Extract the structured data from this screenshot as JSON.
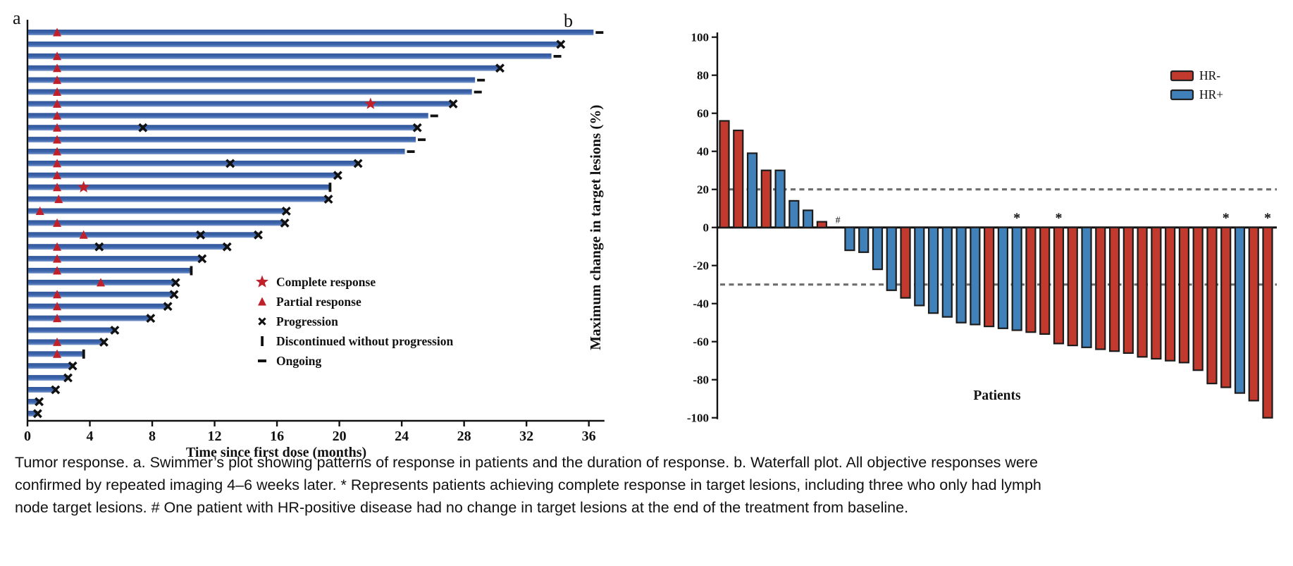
{
  "caption": {
    "line1": "Tumor response. a. Swimmer’s plot showing patterns of response in patients and the duration of response. b. Waterfall plot. All objective responses were",
    "line2": "confirmed by repeated imaging 4–6 weeks later. * Represents patients achieving complete response in target lesions, including three who only had lymph",
    "line3": "node target lesions. # One patient with HR-positive disease had no change in target lesions at the end of the treatment from baseline."
  },
  "chart_data": [
    {
      "type": "swimmer",
      "panel_label": "a",
      "xlabel": "Time since first dose (months)",
      "x_ticks": [
        0,
        4,
        8,
        12,
        16,
        20,
        24,
        28,
        32,
        36
      ],
      "xlim": [
        0,
        37
      ],
      "bar_color": "#3a62a8",
      "marker_red": "#c0202a",
      "marker_black": "#111111",
      "legend": [
        {
          "marker": "star",
          "label": "Complete response"
        },
        {
          "marker": "triangle",
          "label": "Partial response"
        },
        {
          "marker": "x",
          "label": "Progression"
        },
        {
          "marker": "bar",
          "label": "Discontinued without progression"
        },
        {
          "marker": "dash",
          "label": "Ongoing"
        }
      ],
      "patients": [
        {
          "duration": 36.3,
          "end": "ongoing",
          "markers": [
            {
              "type": "pr",
              "x": 1.9
            }
          ]
        },
        {
          "duration": 34.2,
          "end": "x",
          "markers": []
        },
        {
          "duration": 33.6,
          "end": "ongoing",
          "markers": [
            {
              "type": "pr",
              "x": 1.9
            }
          ]
        },
        {
          "duration": 30.3,
          "end": "x",
          "markers": [
            {
              "type": "pr",
              "x": 1.9
            }
          ]
        },
        {
          "duration": 28.7,
          "end": "ongoing",
          "markers": [
            {
              "type": "pr",
              "x": 1.9
            }
          ]
        },
        {
          "duration": 28.5,
          "end": "ongoing",
          "markers": [
            {
              "type": "pr",
              "x": 1.9
            }
          ]
        },
        {
          "duration": 27.3,
          "end": "x",
          "markers": [
            {
              "type": "pr",
              "x": 1.9
            },
            {
              "type": "cr",
              "x": 22.0
            }
          ]
        },
        {
          "duration": 25.7,
          "end": "ongoing",
          "markers": [
            {
              "type": "pr",
              "x": 1.9
            }
          ]
        },
        {
          "duration": 25.0,
          "end": "x",
          "markers": [
            {
              "type": "pr",
              "x": 1.9
            },
            {
              "type": "x",
              "x": 7.4
            }
          ]
        },
        {
          "duration": 24.9,
          "end": "ongoing",
          "markers": [
            {
              "type": "pr",
              "x": 1.9
            }
          ]
        },
        {
          "duration": 24.2,
          "end": "ongoing",
          "markers": [
            {
              "type": "pr",
              "x": 1.9
            }
          ]
        },
        {
          "duration": 21.2,
          "end": "x",
          "markers": [
            {
              "type": "pr",
              "x": 1.9
            },
            {
              "type": "x",
              "x": 13.0
            }
          ]
        },
        {
          "duration": 19.9,
          "end": "x",
          "markers": [
            {
              "type": "pr",
              "x": 1.9
            }
          ]
        },
        {
          "duration": 19.4,
          "end": "disc",
          "markers": [
            {
              "type": "pr",
              "x": 1.9
            },
            {
              "type": "cr",
              "x": 3.6
            }
          ]
        },
        {
          "duration": 19.3,
          "end": "x",
          "markers": [
            {
              "type": "pr",
              "x": 2.0
            }
          ]
        },
        {
          "duration": 16.6,
          "end": "x",
          "markers": [
            {
              "type": "pr",
              "x": 0.8
            }
          ]
        },
        {
          "duration": 16.5,
          "end": "x",
          "markers": [
            {
              "type": "pr",
              "x": 1.9
            }
          ]
        },
        {
          "duration": 14.8,
          "end": "x",
          "markers": [
            {
              "type": "pr",
              "x": 3.6
            },
            {
              "type": "x",
              "x": 11.1
            }
          ]
        },
        {
          "duration": 12.8,
          "end": "x",
          "markers": [
            {
              "type": "pr",
              "x": 1.9
            },
            {
              "type": "x",
              "x": 4.6
            }
          ]
        },
        {
          "duration": 11.2,
          "end": "x",
          "markers": [
            {
              "type": "pr",
              "x": 1.9
            }
          ]
        },
        {
          "duration": 10.5,
          "end": "disc",
          "markers": [
            {
              "type": "pr",
              "x": 1.9
            }
          ]
        },
        {
          "duration": 9.5,
          "end": "x",
          "markers": [
            {
              "type": "pr",
              "x": 4.7
            }
          ]
        },
        {
          "duration": 9.4,
          "end": "x",
          "markers": [
            {
              "type": "pr",
              "x": 1.9
            }
          ]
        },
        {
          "duration": 9.0,
          "end": "x",
          "markers": [
            {
              "type": "pr",
              "x": 1.9
            }
          ]
        },
        {
          "duration": 7.9,
          "end": "x",
          "markers": [
            {
              "type": "pr",
              "x": 1.9
            }
          ]
        },
        {
          "duration": 5.6,
          "end": "x",
          "markers": []
        },
        {
          "duration": 4.9,
          "end": "x",
          "markers": [
            {
              "type": "pr",
              "x": 1.9
            }
          ]
        },
        {
          "duration": 3.6,
          "end": "disc",
          "markers": [
            {
              "type": "pr",
              "x": 1.9
            }
          ]
        },
        {
          "duration": 2.9,
          "end": "x",
          "markers": []
        },
        {
          "duration": 2.6,
          "end": "x",
          "markers": []
        },
        {
          "duration": 1.8,
          "end": "x",
          "markers": []
        },
        {
          "duration": 0.75,
          "end": "x",
          "markers": []
        },
        {
          "duration": 0.65,
          "end": "x",
          "markers": []
        }
      ]
    },
    {
      "type": "bar",
      "panel_label": "b",
      "title": "",
      "ylabel": "Maximum change in target lesions (%)",
      "xlabel": "Patients",
      "ylim": [
        -100,
        100
      ],
      "y_ticks": [
        100,
        80,
        60,
        40,
        20,
        0,
        -20,
        -40,
        -60,
        -80,
        -100
      ],
      "reference_lines": [
        20,
        -30
      ],
      "reference_color": "#6e6e6e",
      "colors": {
        "HR-": "#c23a2e",
        "HR+": "#4081ba"
      },
      "legend": [
        {
          "label": "HR-",
          "color": "#c23a2e"
        },
        {
          "label": "HR+",
          "color": "#4081ba"
        }
      ],
      "bars": [
        {
          "value": 56,
          "group": "HR-"
        },
        {
          "value": 51,
          "group": "HR-"
        },
        {
          "value": 39,
          "group": "HR+"
        },
        {
          "value": 30,
          "group": "HR-"
        },
        {
          "value": 30,
          "group": "HR+"
        },
        {
          "value": 14,
          "group": "HR+"
        },
        {
          "value": 9,
          "group": "HR+"
        },
        {
          "value": 3,
          "group": "HR-"
        },
        {
          "value": 0,
          "group": "HR+",
          "annotation": "#"
        },
        {
          "value": -12,
          "group": "HR+"
        },
        {
          "value": -13,
          "group": "HR+"
        },
        {
          "value": -22,
          "group": "HR+"
        },
        {
          "value": -33,
          "group": "HR+"
        },
        {
          "value": -37,
          "group": "HR-"
        },
        {
          "value": -41,
          "group": "HR+"
        },
        {
          "value": -45,
          "group": "HR+"
        },
        {
          "value": -47,
          "group": "HR+"
        },
        {
          "value": -50,
          "group": "HR+"
        },
        {
          "value": -51,
          "group": "HR+"
        },
        {
          "value": -52,
          "group": "HR-"
        },
        {
          "value": -53,
          "group": "HR+"
        },
        {
          "value": -54,
          "group": "HR+",
          "annotation": "*"
        },
        {
          "value": -55,
          "group": "HR-"
        },
        {
          "value": -56,
          "group": "HR-"
        },
        {
          "value": -61,
          "group": "HR-",
          "annotation": "*"
        },
        {
          "value": -62,
          "group": "HR-"
        },
        {
          "value": -63,
          "group": "HR+"
        },
        {
          "value": -64,
          "group": "HR-"
        },
        {
          "value": -65,
          "group": "HR-"
        },
        {
          "value": -66,
          "group": "HR-"
        },
        {
          "value": -68,
          "group": "HR-"
        },
        {
          "value": -69,
          "group": "HR-"
        },
        {
          "value": -70,
          "group": "HR-"
        },
        {
          "value": -71,
          "group": "HR-"
        },
        {
          "value": -75,
          "group": "HR-"
        },
        {
          "value": -82,
          "group": "HR-"
        },
        {
          "value": -84,
          "group": "HR-",
          "annotation": "*"
        },
        {
          "value": -87,
          "group": "HR+"
        },
        {
          "value": -91,
          "group": "HR-"
        },
        {
          "value": -100,
          "group": "HR-",
          "annotation": "*"
        }
      ]
    }
  ]
}
